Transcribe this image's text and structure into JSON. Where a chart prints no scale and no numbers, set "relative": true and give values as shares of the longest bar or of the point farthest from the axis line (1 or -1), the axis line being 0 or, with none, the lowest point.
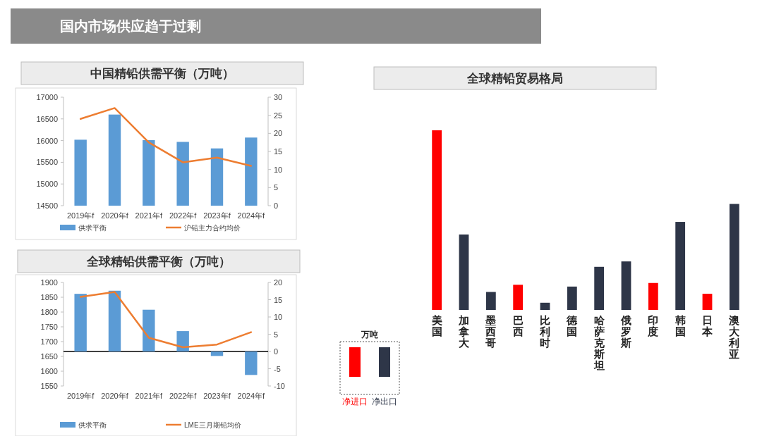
{
  "chart_data": [
    {
      "type": "other",
      "title": "国内市场供应趋于过剩"
    },
    {
      "type": "bar",
      "title": "中国精铅供需平衡（万吨）",
      "categories": [
        "2019年f",
        "2020年f",
        "2021年f",
        "2022年f",
        "2023年f",
        "2024年f"
      ],
      "series": [
        {
          "name": "供求平衡",
          "color": "#5b9bd5",
          "values": [
            16020,
            16600,
            16010,
            15970,
            15820,
            16070
          ]
        },
        {
          "name": "沪铅主力合约均价",
          "type": "line",
          "axis": "y2",
          "color": "#ed7d31",
          "values": [
            24,
            27,
            17.5,
            12,
            13.3,
            11
          ]
        }
      ],
      "ylim": [
        14500,
        17000
      ],
      "yticks": [
        14500,
        15000,
        15500,
        16000,
        16500,
        17000
      ],
      "y2lim": [
        0,
        30
      ],
      "y2ticks": [
        0,
        5,
        10,
        15,
        20,
        25,
        30
      ],
      "legend": "bottom"
    },
    {
      "type": "bar",
      "title": "全球精铅供需平衡（万吨）",
      "categories": [
        "2019年f",
        "2020年f",
        "2021年f",
        "2022年f",
        "2023年f",
        "2024年f"
      ],
      "series": [
        {
          "name": "供求平衡",
          "color": "#5b9bd5",
          "axis": "y2",
          "values": [
            16.7,
            17.6,
            12.1,
            5.9,
            -1.3,
            -6.8
          ]
        },
        {
          "name": "LME三月期铅均价",
          "type": "line",
          "color": "#ed7d31",
          "values": [
            1851,
            1868,
            1713,
            1681,
            1690,
            1732
          ]
        }
      ],
      "ylim": [
        1550,
        1900
      ],
      "yticks": [
        1550,
        1600,
        1650,
        1700,
        1750,
        1800,
        1850,
        1900
      ],
      "y2lim": [
        -10,
        20
      ],
      "y2ticks": [
        -10,
        -5,
        0,
        5,
        10,
        15,
        20
      ],
      "ref_lines": [
        {
          "axis": "y2",
          "value": 0,
          "color": "#000000"
        }
      ],
      "legend": "bottom"
    },
    {
      "type": "bar",
      "title": "全球精铅贸易格局",
      "relative": true,
      "categories": [
        "美国",
        "加拿大",
        "墨西哥",
        "巴西",
        "比利时",
        "德国",
        "哈萨克斯坦",
        "俄罗斯",
        "印度",
        "韩国",
        "日本",
        "澳大利亚"
      ],
      "series": [
        {
          "name": "净进口",
          "color": "#ff0000",
          "values": [
            1,
            null,
            null,
            0.14,
            null,
            null,
            null,
            null,
            0.15,
            null,
            0.09,
            null
          ]
        },
        {
          "name": "净出口",
          "color": "#2e3648",
          "values": [
            null,
            0.42,
            0.1,
            null,
            0.04,
            0.13,
            0.24,
            0.27,
            null,
            0.49,
            null,
            0.59
          ]
        }
      ],
      "legend": "bottom left",
      "legend_title": "万吨"
    }
  ]
}
